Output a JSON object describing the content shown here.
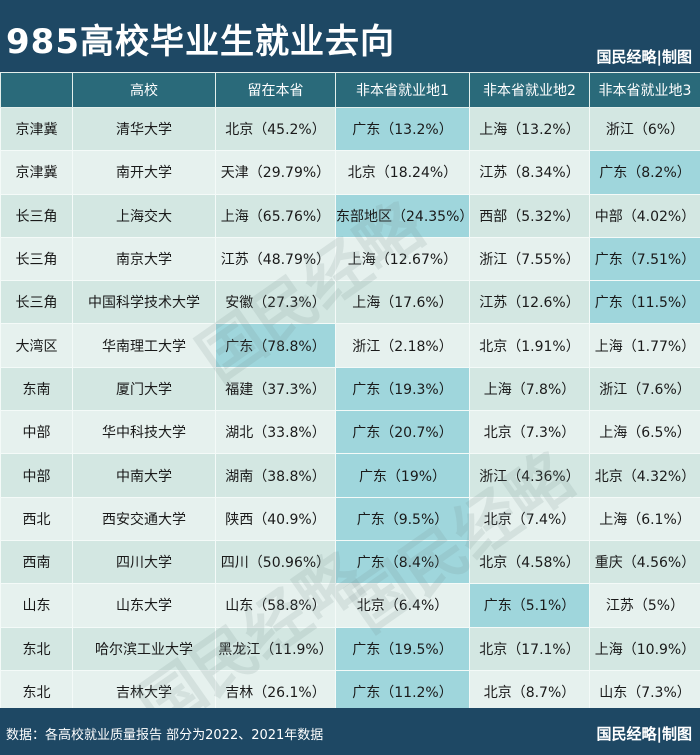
{
  "title": "985高校毕业生就业去向",
  "brand": "国民经略|制图",
  "watermark": "国民经略",
  "columns": [
    "",
    "高校",
    "留在本省",
    "非本省就业地1",
    "非本省就业地2",
    "非本省就业地3"
  ],
  "rows": [
    {
      "region": "京津冀",
      "school": "清华大学",
      "stay": "北京（45.2%）",
      "d1": "广东（13.2%）",
      "d2": "上海（13.2%）",
      "d3": "浙江（6%）",
      "hl": [
        0,
        1,
        0,
        0
      ]
    },
    {
      "region": "京津冀",
      "school": "南开大学",
      "stay": "天津（29.79%）",
      "d1": "北京（18.24%）",
      "d2": "江苏（8.34%）",
      "d3": "广东（8.2%）",
      "hl": [
        0,
        0,
        0,
        1
      ]
    },
    {
      "region": "长三角",
      "school": "上海交大",
      "stay": "上海（65.76%）",
      "d1": "东部地区（24.35%）",
      "d2": "西部（5.32%）",
      "d3": "中部（4.02%）",
      "hl": [
        0,
        1,
        0,
        0
      ]
    },
    {
      "region": "长三角",
      "school": "南京大学",
      "stay": "江苏（48.79%）",
      "d1": "上海（12.67%）",
      "d2": "浙江（7.55%）",
      "d3": "广东（7.51%）",
      "hl": [
        0,
        0,
        0,
        1
      ]
    },
    {
      "region": "长三角",
      "school": "中国科学技术大学",
      "stay": "安徽（27.3%）",
      "d1": "上海（17.6%）",
      "d2": "江苏（12.6%）",
      "d3": "广东（11.5%）",
      "hl": [
        0,
        0,
        0,
        1
      ]
    },
    {
      "region": "大湾区",
      "school": "华南理工大学",
      "stay": "广东（78.8%）",
      "d1": "浙江（2.18%）",
      "d2": "北京（1.91%）",
      "d3": "上海（1.77%）",
      "hl": [
        1,
        0,
        0,
        0
      ]
    },
    {
      "region": "东南",
      "school": "厦门大学",
      "stay": "福建（37.3%）",
      "d1": "广东（19.3%）",
      "d2": "上海（7.8%）",
      "d3": "浙江（7.6%）",
      "hl": [
        0,
        1,
        0,
        0
      ]
    },
    {
      "region": "中部",
      "school": "华中科技大学",
      "stay": "湖北（33.8%）",
      "d1": "广东（20.7%）",
      "d2": "北京（7.3%）",
      "d3": "上海（6.5%）",
      "hl": [
        0,
        1,
        0,
        0
      ]
    },
    {
      "region": "中部",
      "school": "中南大学",
      "stay": "湖南（38.8%）",
      "d1": "广东（19%）",
      "d2": "浙江（4.36%）",
      "d3": "北京（4.32%）",
      "hl": [
        0,
        1,
        0,
        0
      ]
    },
    {
      "region": "西北",
      "school": "西安交通大学",
      "stay": "陕西（40.9%）",
      "d1": "广东（9.5%）",
      "d2": "北京（7.4%）",
      "d3": "上海（6.1%）",
      "hl": [
        0,
        1,
        0,
        0
      ]
    },
    {
      "region": "西南",
      "school": "四川大学",
      "stay": "四川（50.96%）",
      "d1": "广东（8.4%）",
      "d2": "北京（4.58%）",
      "d3": "重庆（4.56%）",
      "hl": [
        0,
        1,
        0,
        0
      ]
    },
    {
      "region": "山东",
      "school": "山东大学",
      "stay": "山东（58.8%）",
      "d1": "北京（6.4%）",
      "d2": "广东（5.1%）",
      "d3": "江苏（5%）",
      "hl": [
        0,
        0,
        1,
        0
      ]
    },
    {
      "region": "东北",
      "school": "哈尔滨工业大学",
      "stay": "黑龙江（11.9%）",
      "d1": "广东（19.5%）",
      "d2": "北京（17.1%）",
      "d3": "上海（10.9%）",
      "hl": [
        0,
        1,
        0,
        0
      ]
    },
    {
      "region": "东北",
      "school": "吉林大学",
      "stay": "吉林（26.1%）",
      "d1": "广东（11.2%）",
      "d2": "北京（8.7%）",
      "d3": "山东（7.3%）",
      "hl": [
        0,
        1,
        0,
        0
      ]
    }
  ],
  "source": "数据：各高校就业质量报告  部分为2022、2021年数据",
  "colors": {
    "header_bg": "#1e4864",
    "col_header_bg": "#2a6a7a",
    "highlight": "#9fd6dc"
  }
}
